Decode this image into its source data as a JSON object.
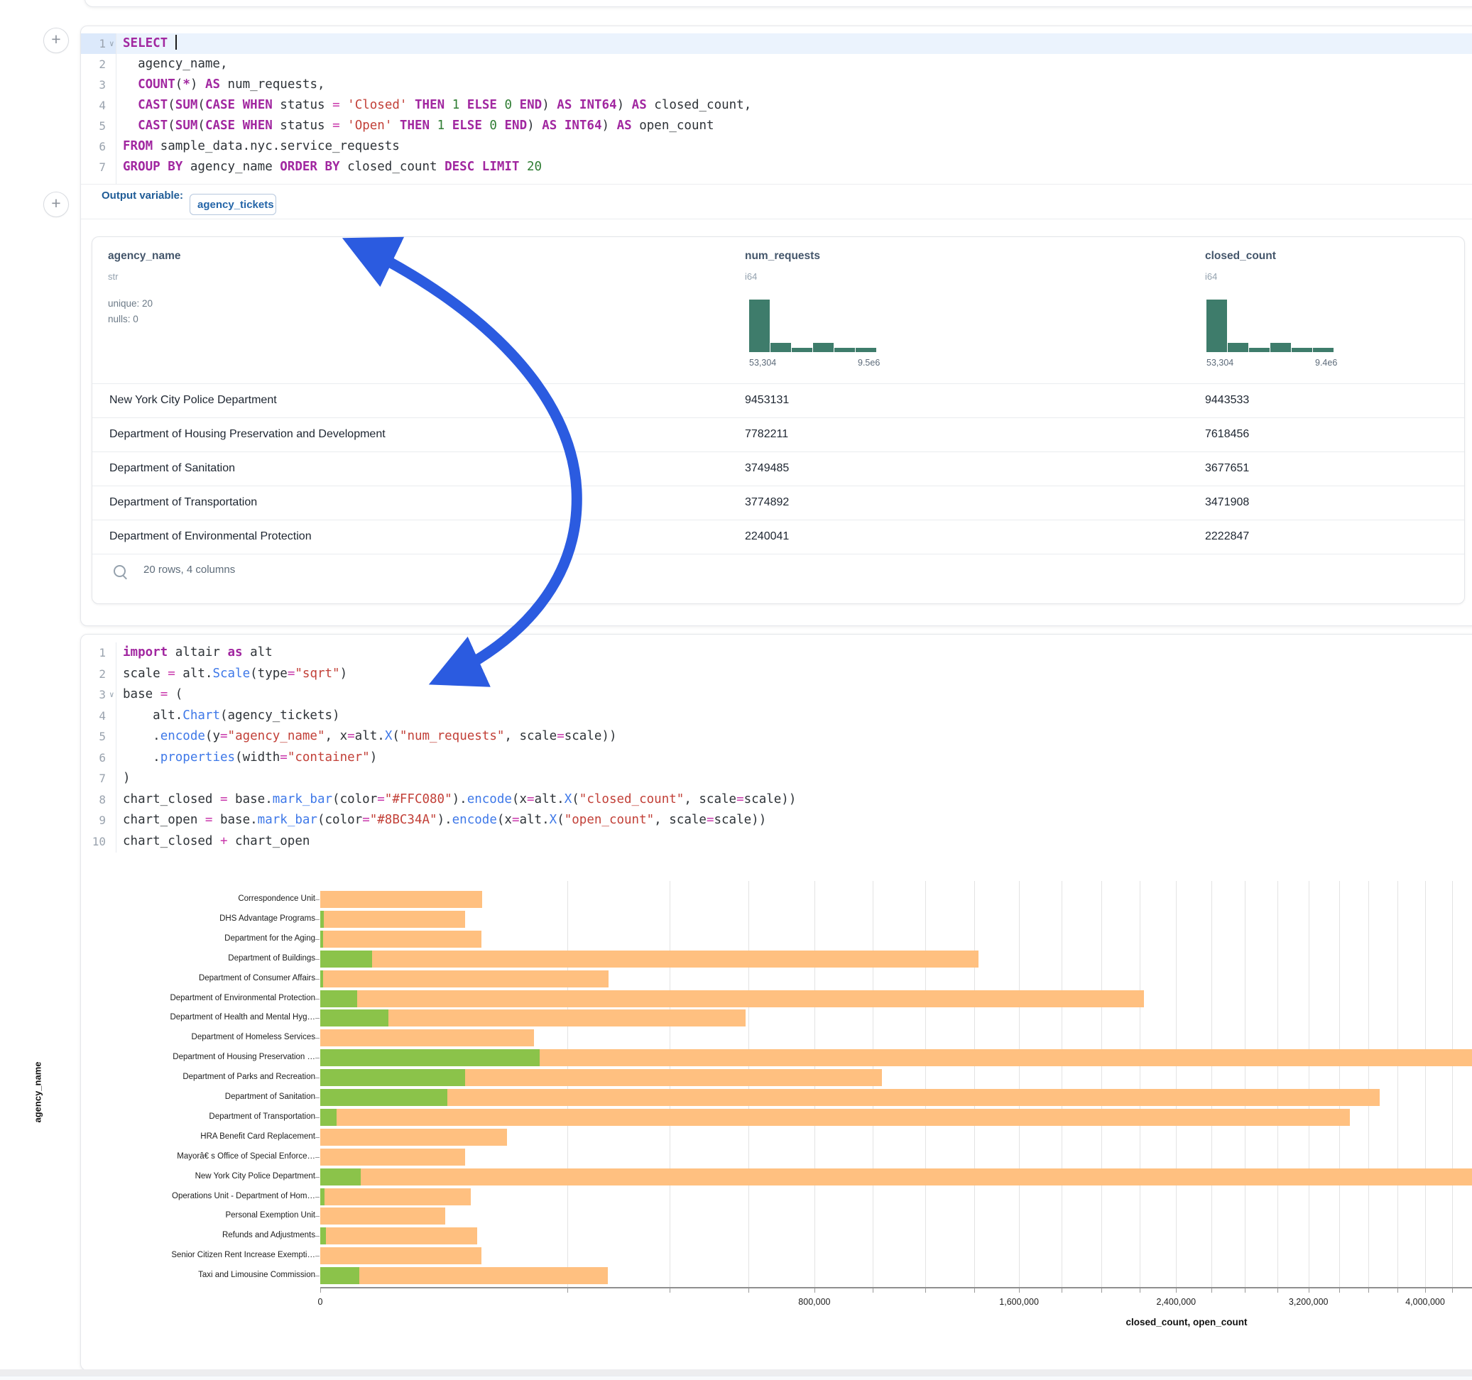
{
  "colors": {
    "arrow": "#2b5be0",
    "bar_closed": "#ffc080",
    "bar_open": "#8bc34a",
    "histogram": "#3e7c6b"
  },
  "sql_cell": {
    "output_variable_label": "Output variable:",
    "output_variable_value": "agency_tickets",
    "lines": [
      {
        "num": "1",
        "caret": true,
        "active": true,
        "tokens": [
          [
            "k",
            "SELECT"
          ],
          [
            "p",
            " "
          ],
          [
            "cur",
            ""
          ]
        ]
      },
      {
        "num": "2",
        "tokens": [
          [
            "p",
            "  agency_name,"
          ]
        ]
      },
      {
        "num": "3",
        "tokens": [
          [
            "p",
            "  "
          ],
          [
            "k",
            "COUNT"
          ],
          [
            "p",
            "("
          ],
          [
            "k",
            "*"
          ],
          [
            "p",
            ") "
          ],
          [
            "k",
            "AS"
          ],
          [
            "p",
            " num_requests,"
          ]
        ]
      },
      {
        "num": "4",
        "tokens": [
          [
            "p",
            "  "
          ],
          [
            "k",
            "CAST"
          ],
          [
            "p",
            "("
          ],
          [
            "k",
            "SUM"
          ],
          [
            "p",
            "("
          ],
          [
            "k",
            "CASE WHEN"
          ],
          [
            "p",
            " status "
          ],
          [
            "o",
            "="
          ],
          [
            "p",
            " "
          ],
          [
            "s",
            "'Closed'"
          ],
          [
            "p",
            " "
          ],
          [
            "k",
            "THEN"
          ],
          [
            "p",
            " "
          ],
          [
            "n",
            "1"
          ],
          [
            "p",
            " "
          ],
          [
            "k",
            "ELSE"
          ],
          [
            "p",
            " "
          ],
          [
            "n",
            "0"
          ],
          [
            "p",
            " "
          ],
          [
            "k",
            "END"
          ],
          [
            "p",
            ") "
          ],
          [
            "k",
            "AS"
          ],
          [
            "p",
            " "
          ],
          [
            "k",
            "INT64"
          ],
          [
            "p",
            ") "
          ],
          [
            "k",
            "AS"
          ],
          [
            "p",
            " closed_count,"
          ]
        ]
      },
      {
        "num": "5",
        "tokens": [
          [
            "p",
            "  "
          ],
          [
            "k",
            "CAST"
          ],
          [
            "p",
            "("
          ],
          [
            "k",
            "SUM"
          ],
          [
            "p",
            "("
          ],
          [
            "k",
            "CASE WHEN"
          ],
          [
            "p",
            " status "
          ],
          [
            "o",
            "="
          ],
          [
            "p",
            " "
          ],
          [
            "s",
            "'Open'"
          ],
          [
            "p",
            " "
          ],
          [
            "k",
            "THEN"
          ],
          [
            "p",
            " "
          ],
          [
            "n",
            "1"
          ],
          [
            "p",
            " "
          ],
          [
            "k",
            "ELSE"
          ],
          [
            "p",
            " "
          ],
          [
            "n",
            "0"
          ],
          [
            "p",
            " "
          ],
          [
            "k",
            "END"
          ],
          [
            "p",
            ") "
          ],
          [
            "k",
            "AS"
          ],
          [
            "p",
            " "
          ],
          [
            "k",
            "INT64"
          ],
          [
            "p",
            ") "
          ],
          [
            "k",
            "AS"
          ],
          [
            "p",
            " open_count"
          ]
        ]
      },
      {
        "num": "6",
        "tokens": [
          [
            "k",
            "FROM"
          ],
          [
            "p",
            " sample_data.nyc.service_requests"
          ]
        ]
      },
      {
        "num": "7",
        "tokens": [
          [
            "k",
            "GROUP BY"
          ],
          [
            "p",
            " agency_name "
          ],
          [
            "k",
            "ORDER BY"
          ],
          [
            "p",
            " closed_count "
          ],
          [
            "k",
            "DESC"
          ],
          [
            "p",
            " "
          ],
          [
            "k",
            "LIMIT"
          ],
          [
            "p",
            " "
          ],
          [
            "n",
            "20"
          ]
        ]
      }
    ]
  },
  "table": {
    "columns": [
      {
        "name": "agency_name",
        "type": "str",
        "stats": [
          "unique: 20",
          "nulls: 0"
        ]
      },
      {
        "name": "num_requests",
        "type": "i64",
        "hist_min": "53,304",
        "hist_max": "9.5e6",
        "hist_bars": [
          1.0,
          0.17,
          0.08,
          0.17,
          0.08,
          0.08
        ]
      },
      {
        "name": "closed_count",
        "type": "i64",
        "hist_min": "53,304",
        "hist_max": "9.4e6",
        "hist_bars": [
          1.0,
          0.17,
          0.08,
          0.17,
          0.08,
          0.08
        ]
      }
    ],
    "rows": [
      {
        "agency_name": "New York City Police Department",
        "num_requests": "9453131",
        "closed_count": "9443533"
      },
      {
        "agency_name": "Department of Housing Preservation and Development",
        "num_requests": "7782211",
        "closed_count": "7618456"
      },
      {
        "agency_name": "Department of Sanitation",
        "num_requests": "3749485",
        "closed_count": "3677651"
      },
      {
        "agency_name": "Department of Transportation",
        "num_requests": "3774892",
        "closed_count": "3471908"
      },
      {
        "agency_name": "Department of Environmental Protection",
        "num_requests": "2240041",
        "closed_count": "2222847"
      }
    ],
    "footer": "20 rows, 4 columns"
  },
  "python_cell": {
    "lines": [
      {
        "num": "1",
        "tokens": [
          [
            "k",
            "import"
          ],
          [
            "p",
            " altair "
          ],
          [
            "k",
            "as"
          ],
          [
            "p",
            " alt"
          ]
        ]
      },
      {
        "num": "2",
        "tokens": [
          [
            "p",
            "scale "
          ],
          [
            "o",
            "="
          ],
          [
            "p",
            " alt."
          ],
          [
            "f",
            "Scale"
          ],
          [
            "p",
            "(type"
          ],
          [
            "o",
            "="
          ],
          [
            "s",
            "\"sqrt\""
          ],
          [
            "p",
            ")"
          ]
        ]
      },
      {
        "num": "3",
        "caret": true,
        "tokens": [
          [
            "p",
            "base "
          ],
          [
            "o",
            "="
          ],
          [
            "p",
            " ("
          ]
        ]
      },
      {
        "num": "4",
        "tokens": [
          [
            "p",
            "    alt."
          ],
          [
            "f",
            "Chart"
          ],
          [
            "p",
            "(agency_tickets)"
          ]
        ]
      },
      {
        "num": "5",
        "tokens": [
          [
            "p",
            "    ."
          ],
          [
            "f",
            "encode"
          ],
          [
            "p",
            "(y"
          ],
          [
            "o",
            "="
          ],
          [
            "s",
            "\"agency_name\""
          ],
          [
            "p",
            ", x"
          ],
          [
            "o",
            "="
          ],
          [
            "p",
            "alt."
          ],
          [
            "f",
            "X"
          ],
          [
            "p",
            "("
          ],
          [
            "s",
            "\"num_requests\""
          ],
          [
            "p",
            ", scale"
          ],
          [
            "o",
            "="
          ],
          [
            "p",
            "scale))"
          ]
        ]
      },
      {
        "num": "6",
        "tokens": [
          [
            "p",
            "    ."
          ],
          [
            "f",
            "properties"
          ],
          [
            "p",
            "(width"
          ],
          [
            "o",
            "="
          ],
          [
            "s",
            "\"container\""
          ],
          [
            "p",
            ")"
          ]
        ]
      },
      {
        "num": "7",
        "tokens": [
          [
            "p",
            ")"
          ]
        ]
      },
      {
        "num": "8",
        "tokens": [
          [
            "p",
            "chart_closed "
          ],
          [
            "o",
            "="
          ],
          [
            "p",
            " base."
          ],
          [
            "f",
            "mark_bar"
          ],
          [
            "p",
            "(color"
          ],
          [
            "o",
            "="
          ],
          [
            "s",
            "\"#FFC080\""
          ],
          [
            "p",
            ")."
          ],
          [
            "f",
            "encode"
          ],
          [
            "p",
            "(x"
          ],
          [
            "o",
            "="
          ],
          [
            "p",
            "alt."
          ],
          [
            "f",
            "X"
          ],
          [
            "p",
            "("
          ],
          [
            "s",
            "\"closed_count\""
          ],
          [
            "p",
            ", scale"
          ],
          [
            "o",
            "="
          ],
          [
            "p",
            "scale))"
          ]
        ]
      },
      {
        "num": "9",
        "tokens": [
          [
            "p",
            "chart_open "
          ],
          [
            "o",
            "="
          ],
          [
            "p",
            " base."
          ],
          [
            "f",
            "mark_bar"
          ],
          [
            "p",
            "(color"
          ],
          [
            "o",
            "="
          ],
          [
            "s",
            "\"#8BC34A\""
          ],
          [
            "p",
            ")."
          ],
          [
            "f",
            "encode"
          ],
          [
            "p",
            "(x"
          ],
          [
            "o",
            "="
          ],
          [
            "p",
            "alt."
          ],
          [
            "f",
            "X"
          ],
          [
            "p",
            "("
          ],
          [
            "s",
            "\"open_count\""
          ],
          [
            "p",
            ", scale"
          ],
          [
            "o",
            "="
          ],
          [
            "p",
            "scale))"
          ]
        ]
      },
      {
        "num": "10",
        "tokens": [
          [
            "p",
            "chart_closed "
          ],
          [
            "o",
            "+"
          ],
          [
            "p",
            " chart_open"
          ]
        ]
      }
    ]
  },
  "chart_data": {
    "type": "bar",
    "orientation": "horizontal",
    "x_scale": "sqrt",
    "xlabel": "closed_count, open_count",
    "ylabel": "agency_name",
    "grid": true,
    "gridline_step": 200000,
    "x_domain_visible": [
      0,
      4400000
    ],
    "x_ticks": [
      {
        "value": 0,
        "label": "0"
      },
      {
        "value": 800000,
        "label": "800,000"
      },
      {
        "value": 1600000,
        "label": "1,600,000"
      },
      {
        "value": 2400000,
        "label": "2,400,000"
      },
      {
        "value": 3200000,
        "label": "3,200,000"
      },
      {
        "value": 4000000,
        "label": "4,000,000"
      }
    ],
    "categories": [
      "Correspondence Unit",
      "DHS Advantage Programs",
      "Department for the Aging",
      "Department of Buildings",
      "Department of Consumer Affairs",
      "Department of Environmental Protection",
      "Department of Health and Mental Hyg…",
      "Department of Homeless Services",
      "Department of Housing Preservation …",
      "Department of Parks and Recreation",
      "Department of Sanitation",
      "Department of Transportation",
      "HRA Benefit Card Replacement",
      "May​orâ€ s Office of Special Enforce…",
      "New York City Police Department",
      "Operations Unit - Department of Hom…",
      "Personal Exemption Unit",
      "Refunds and Adjustments",
      "Senior Citizen Rent Increase Exempti…",
      "Taxi and Limousine Commission"
    ],
    "series": [
      {
        "name": "closed_count",
        "color": "#ffc080",
        "values": [
          86000,
          69000,
          85000,
          1420000,
          272000,
          2222847,
          593000,
          150000,
          7618456,
          1034000,
          3677651,
          3471908,
          114000,
          69000,
          9443533,
          74000,
          51000,
          81000,
          85000,
          271000
        ]
      },
      {
        "name": "open_count",
        "color": "#8bc34a",
        "values": [
          0,
          40,
          30,
          8800,
          25,
          4500,
          15200,
          0,
          158000,
          69000,
          53000,
          900,
          0,
          0,
          5400,
          60,
          0,
          100,
          0,
          5000
        ]
      }
    ]
  }
}
